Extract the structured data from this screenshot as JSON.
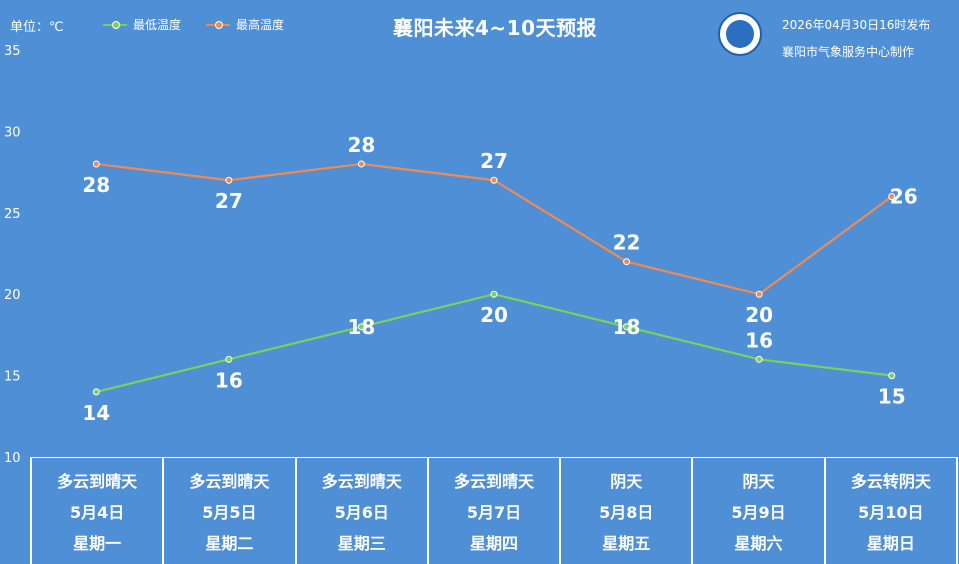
{
  "header": {
    "unit_label": "单位：℃",
    "title": "襄阳未来4~10天预报",
    "issued": "2026年04月30日16时发布",
    "maker": "襄阳市气象服务中心制作",
    "logo_icon": "weather-service-logo-icon"
  },
  "chart_data": {
    "type": "line",
    "title": "襄阳未来4~10天预报",
    "ylabel": "单位：℃",
    "ylim": [
      10,
      35
    ],
    "yticks": [
      10,
      15,
      20,
      25,
      30,
      35
    ],
    "grid": false,
    "legend_position": "top-left",
    "categories": [
      "5月4日",
      "5月5日",
      "5月6日",
      "5月7日",
      "5月8日",
      "5月9日",
      "5月10日"
    ],
    "series": [
      {
        "name": "最低温度",
        "values": [
          14,
          16,
          18,
          20,
          18,
          16,
          15
        ],
        "color": "#7bd15a"
      },
      {
        "name": "最高温度",
        "values": [
          28,
          27,
          28,
          27,
          22,
          20,
          26
        ],
        "color": "#ef8a55"
      }
    ]
  },
  "days": [
    {
      "weather": "多云到晴天",
      "date": "5月4日",
      "weekday": "星期一"
    },
    {
      "weather": "多云到晴天",
      "date": "5月5日",
      "weekday": "星期二"
    },
    {
      "weather": "多云到晴天",
      "date": "5月6日",
      "weekday": "星期三"
    },
    {
      "weather": "多云到晴天",
      "date": "5月7日",
      "weekday": "星期四"
    },
    {
      "weather": "阴天",
      "date": "5月8日",
      "weekday": "星期五"
    },
    {
      "weather": "阴天",
      "date": "5月9日",
      "weekday": "星期六"
    },
    {
      "weather": "多云转阴天",
      "date": "5月10日",
      "weekday": "星期日"
    }
  ],
  "colors": {
    "background": "#4f8fd6",
    "low_line": "#7bd15a",
    "high_line": "#ef8a55"
  }
}
